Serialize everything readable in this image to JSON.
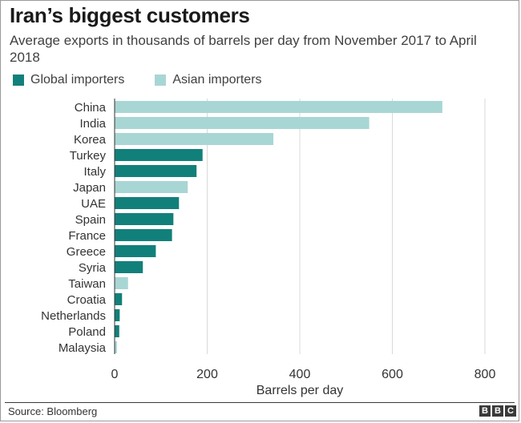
{
  "title": "Iran’s biggest customers",
  "subtitle": "Average exports in thousands of barrels per day from November 2017 to April 2018",
  "legend": [
    {
      "label": "Global importers",
      "color": "#12807a"
    },
    {
      "label": "Asian importers",
      "color": "#a8d6d4"
    }
  ],
  "source": "Source: Bloomberg",
  "logo": [
    "B",
    "B",
    "C"
  ],
  "chart_data": {
    "type": "bar",
    "orientation": "horizontal",
    "categories": [
      "China",
      "India",
      "Korea",
      "Turkey",
      "Italy",
      "Japan",
      "UAE",
      "Spain",
      "France",
      "Greece",
      "Syria",
      "Taiwan",
      "Croatia",
      "Netherlands",
      "Poland",
      "Malaysia"
    ],
    "values": [
      708,
      550,
      343,
      190,
      177,
      158,
      139,
      127,
      124,
      89,
      61,
      29,
      16,
      11,
      10,
      5
    ],
    "groups": [
      "Asian importers",
      "Asian importers",
      "Asian importers",
      "Global importers",
      "Global importers",
      "Asian importers",
      "Global importers",
      "Global importers",
      "Global importers",
      "Global importers",
      "Global importers",
      "Asian importers",
      "Global importers",
      "Global importers",
      "Global importers",
      "Asian importers"
    ],
    "colors": {
      "Global importers": "#12807a",
      "Asian importers": "#a8d6d4"
    },
    "xlabel": "Barrels per day",
    "xlim": [
      0,
      800
    ],
    "xticks": [
      0,
      200,
      400,
      600,
      800
    ],
    "grid": true,
    "legend_position": "top-left"
  }
}
